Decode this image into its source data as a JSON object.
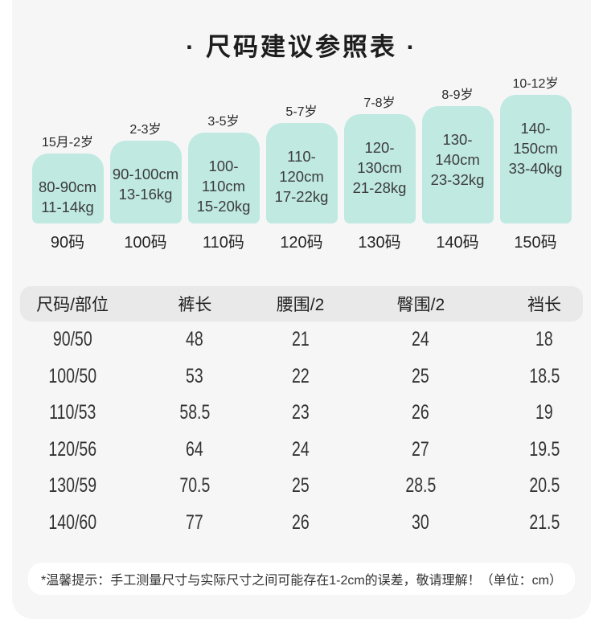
{
  "title": "· 尺码建议参照表 ·",
  "colors": {
    "bar_fill": "#bfe9e1",
    "card_bg": "#f6f6f6",
    "header_pill_bg": "#e9e9e9",
    "note_bg": "#ffffff",
    "page_bg": "#ffffff",
    "text": "#262626"
  },
  "size_chart": {
    "bars": [
      {
        "age": "15月-2岁",
        "height_range": "80-90cm",
        "weight_range": "11-14kg",
        "size": "90码"
      },
      {
        "age": "2-3岁",
        "height_range": "90-100cm",
        "weight_range": "13-16kg",
        "size": "100码"
      },
      {
        "age": "3-5岁",
        "height_range": "100-110cm",
        "weight_range": "15-20kg",
        "size": "110码"
      },
      {
        "age": "5-7岁",
        "height_range": "110-120cm",
        "weight_range": "17-22kg",
        "size": "120码"
      },
      {
        "age": "7-8岁",
        "height_range": "120-130cm",
        "weight_range": "21-28kg",
        "size": "130码"
      },
      {
        "age": "8-9岁",
        "height_range": "130-140cm",
        "weight_range": "23-32kg",
        "size": "140码"
      },
      {
        "age": "10-12岁",
        "height_range": "140-150cm",
        "weight_range": "33-40kg",
        "size": "150码"
      }
    ]
  },
  "measurements_table": {
    "headers": [
      "尺码/部位",
      "裤长",
      "腰围/2",
      "臀围/2",
      "裆长"
    ],
    "rows": [
      [
        "90/50",
        "48",
        "21",
        "24",
        "18"
      ],
      [
        "100/50",
        "53",
        "22",
        "25",
        "18.5"
      ],
      [
        "110/53",
        "58.5",
        "23",
        "26",
        "19"
      ],
      [
        "120/56",
        "64",
        "24",
        "27",
        "19.5"
      ],
      [
        "130/59",
        "70.5",
        "25",
        "28.5",
        "20.5"
      ],
      [
        "140/60",
        "77",
        "26",
        "30",
        "21.5"
      ]
    ]
  },
  "footer": {
    "note": "*温馨提示：手工测量尺寸与实际尺寸之间可能存在1-2cm的误差，敬请理解！（单位：cm）"
  },
  "chart_data": [
    {
      "type": "bar",
      "title": "尺码建议参照表",
      "categories": [
        "90码",
        "100码",
        "110码",
        "120码",
        "130码",
        "140码",
        "150码"
      ],
      "series": [
        {
          "name": "step-height-px",
          "values": [
            87,
            103,
            113,
            125,
            136,
            146,
            160
          ]
        }
      ],
      "bar_top_labels": [
        "15月-2岁",
        "2-3岁",
        "3-5岁",
        "5-7岁",
        "7-8岁",
        "8-9岁",
        "10-12岁"
      ],
      "bar_inner_labels": [
        "80-90cm 11-14kg",
        "90-100cm 13-16kg",
        "100-110cm 15-20kg",
        "110-120cm 17-22kg",
        "120-130cm 21-28kg",
        "130-140cm 23-32kg",
        "140-150cm 33-40kg"
      ],
      "xlabel": "",
      "ylabel": "",
      "grid": false,
      "legend": "none",
      "note": "bar heights are decorative ascending steps, not a numeric axis"
    },
    {
      "type": "table",
      "columns": [
        "尺码/部位",
        "裤长",
        "腰围/2",
        "臀围/2",
        "裆长"
      ],
      "rows": [
        [
          "90/50",
          48,
          21,
          24,
          18
        ],
        [
          "100/50",
          53,
          22,
          25,
          18.5
        ],
        [
          "110/53",
          58.5,
          23,
          26,
          19
        ],
        [
          "120/56",
          64,
          24,
          27,
          19.5
        ],
        [
          "130/59",
          70.5,
          25,
          28.5,
          20.5
        ],
        [
          "140/60",
          77,
          26,
          30,
          21.5
        ]
      ],
      "unit": "cm"
    }
  ]
}
